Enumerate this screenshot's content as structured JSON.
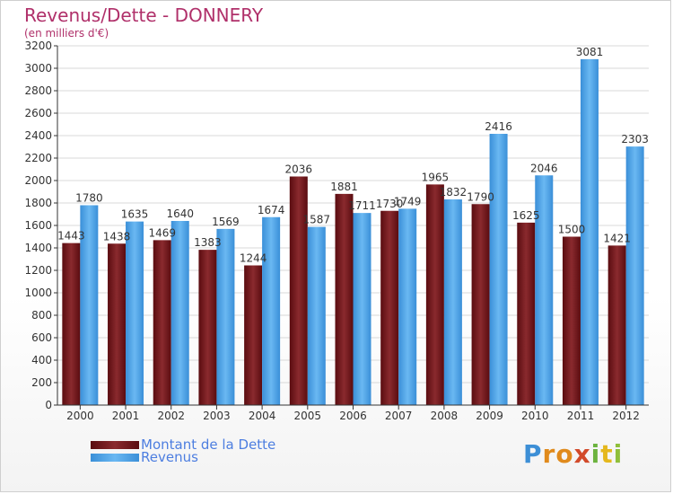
{
  "title": "Revenus/Dette - DONNERY",
  "subtitle": "(en milliers d'€)",
  "colors": {
    "dette": "#7a1f22",
    "revenus": "#4aa3e8",
    "title": "#b0306a",
    "legend_text": "#4d7ee0"
  },
  "logo": {
    "text": "Proxiti"
  },
  "chart_data": {
    "type": "bar",
    "title": "Revenus/Dette - DONNERY",
    "subtitle": "(en milliers d'€)",
    "categories": [
      "2000",
      "2001",
      "2002",
      "2003",
      "2004",
      "2005",
      "2006",
      "2007",
      "2008",
      "2009",
      "2010",
      "2011",
      "2012"
    ],
    "series": [
      {
        "name": "Montant de la Dette",
        "color": "#7a1f22",
        "values": [
          1443,
          1438,
          1469,
          1383,
          1244,
          2036,
          1881,
          1730,
          1965,
          1790,
          1625,
          1500,
          1421
        ],
        "labels": [
          "1443",
          "1438",
          "1469",
          "1383",
          "1244",
          "2036",
          "1881",
          "1730",
          "1965",
          "1790",
          "1625",
          "1500",
          "1421"
        ]
      },
      {
        "name": "Revenus",
        "color": "#4aa3e8",
        "values": [
          1780,
          1635,
          1640,
          1569,
          1674,
          1587,
          1711,
          1749,
          1832,
          2416,
          2046,
          3081,
          2303
        ],
        "labels": [
          "1780",
          "1635",
          "1640",
          "1569",
          "1674",
          "1587",
          "1711",
          "1749",
          "1832",
          "2416",
          "2046",
          "3081",
          "2303"
        ]
      }
    ],
    "ylim": [
      0,
      3200
    ],
    "yticks": [
      0,
      200,
      400,
      600,
      800,
      1000,
      1200,
      1400,
      1600,
      1800,
      2000,
      2200,
      2400,
      2600,
      2800,
      3000,
      3200
    ],
    "grid": true,
    "legend": "bottom-left"
  }
}
